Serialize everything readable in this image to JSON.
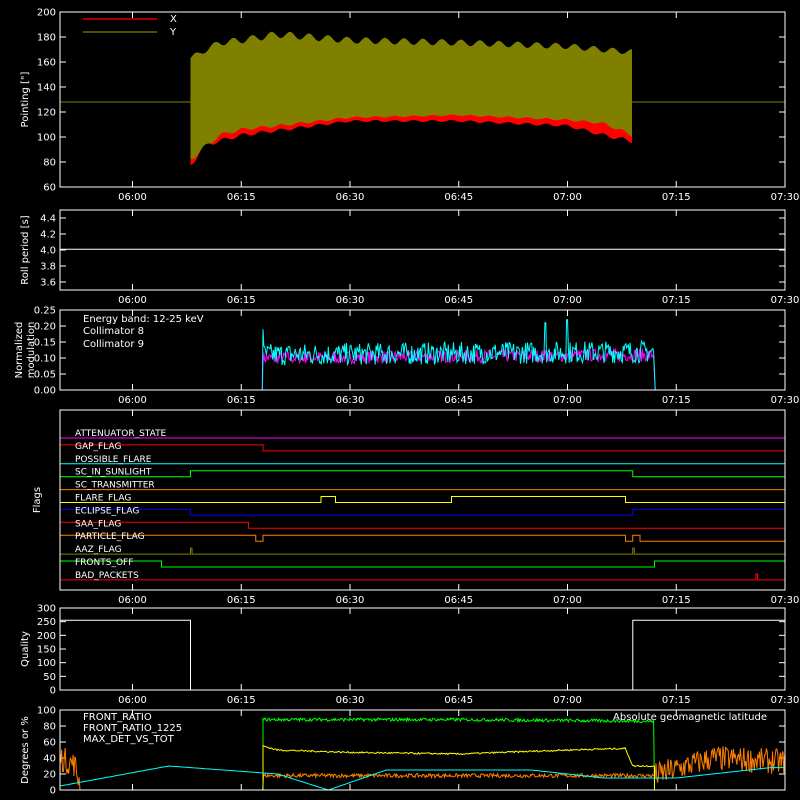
{
  "x_time_ticks": [
    "06:00",
    "06:15",
    "06:30",
    "06:45",
    "07:00",
    "07:15",
    "07:30"
  ],
  "chart_data": [
    {
      "type": "line",
      "panel": "pointing",
      "ylabel": "Pointing [\"]",
      "ylim": [
        60,
        200
      ],
      "yticks": [
        60,
        80,
        100,
        120,
        140,
        160,
        180,
        200
      ],
      "xlim": [
        "05:50",
        "07:30"
      ],
      "legend": [
        {
          "name": "X",
          "color": "#ff0000"
        },
        {
          "name": "Y",
          "color": "#808000"
        }
      ],
      "series": [
        {
          "name": "X",
          "color": "#ff0000",
          "baseline": 128,
          "envelope_upper": [
            [
              "06:08",
              165
            ],
            [
              "06:10",
              150
            ],
            [
              "06:15",
              152
            ],
            [
              "06:20",
              155
            ],
            [
              "06:30",
              158
            ],
            [
              "06:45",
              160
            ],
            [
              "07:00",
              162
            ],
            [
              "07:05",
              162
            ],
            [
              "07:09",
              165
            ]
          ],
          "envelope_lower": [
            [
              "06:08",
              75
            ],
            [
              "06:10",
              92
            ],
            [
              "06:15",
              100
            ],
            [
              "06:20",
              104
            ],
            [
              "06:30",
              112
            ],
            [
              "06:45",
              112
            ],
            [
              "07:00",
              108
            ],
            [
              "07:05",
              100
            ],
            [
              "07:09",
              95
            ]
          ]
        },
        {
          "name": "Y",
          "color": "#808000",
          "baseline": 128,
          "envelope_upper": [
            [
              "06:08",
              165
            ],
            [
              "06:12",
              178
            ],
            [
              "06:15",
              180
            ],
            [
              "06:20",
              185
            ],
            [
              "06:30",
              180
            ],
            [
              "06:45",
              178
            ],
            [
              "07:00",
              175
            ],
            [
              "07:05",
              172
            ],
            [
              "07:09",
              170
            ]
          ],
          "envelope_lower": [
            [
              "06:08",
              80
            ],
            [
              "06:12",
              100
            ],
            [
              "06:15",
              105
            ],
            [
              "06:20",
              108
            ],
            [
              "06:30",
              115
            ],
            [
              "06:45",
              117
            ],
            [
              "07:00",
              113
            ],
            [
              "07:05",
              110
            ],
            [
              "07:09",
              100
            ]
          ]
        }
      ]
    },
    {
      "type": "line",
      "panel": "roll_period",
      "ylabel": "Roll period [s]",
      "ylim": [
        3.5,
        4.5
      ],
      "yticks": [
        3.6,
        3.8,
        4.0,
        4.2,
        4.4
      ],
      "series": [
        {
          "name": "Roll period",
          "color": "#ffffff",
          "x": [
            "05:50",
            "07:30"
          ],
          "y": [
            4.01,
            4.01
          ]
        }
      ]
    },
    {
      "type": "line",
      "panel": "modulation",
      "ylabel": "Normalized modulation",
      "ylim": [
        0,
        0.25
      ],
      "yticks": [
        0.0,
        0.05,
        0.1,
        0.15,
        0.2,
        0.25
      ],
      "annotation": "Energy band: 12-25 keV",
      "legend": [
        {
          "name": "Collimator 8",
          "color": "#00ffff"
        },
        {
          "name": "Collimator 9",
          "color": "#ff00ff"
        }
      ],
      "series": [
        {
          "name": "Collimator 8",
          "color": "#00ffff",
          "active": [
            "06:18",
            "07:12"
          ],
          "level_start": 0.11,
          "level_end": 0.12,
          "spikes": [
            [
              "06:18",
              0.19
            ],
            [
              "06:57",
              0.21
            ],
            [
              "07:00",
              0.22
            ]
          ]
        },
        {
          "name": "Collimator 9",
          "color": "#ff00ff",
          "active": [
            "06:18",
            "07:12"
          ],
          "level_start": 0.1,
          "level_end": 0.11
        }
      ]
    },
    {
      "type": "line",
      "panel": "flags",
      "ylabel": "Flags",
      "flags": [
        {
          "name": "ATTENUATOR_STATE",
          "color": "#ff00ff",
          "level": 0,
          "highs": []
        },
        {
          "name": "GAP_FLAG",
          "color": "#ff0000",
          "level": 0,
          "highs": [
            [
              "05:50",
              "06:18"
            ]
          ]
        },
        {
          "name": "POSSIBLE_FLARE",
          "color": "#00ffff",
          "level": 0,
          "highs": []
        },
        {
          "name": "SC_IN_SUNLIGHT",
          "color": "#00ff00",
          "level": 0,
          "highs": [
            [
              "06:08",
              "07:09"
            ]
          ]
        },
        {
          "name": "SC_TRANSMITTER",
          "color": "#ff7f00",
          "level": 0,
          "highs": []
        },
        {
          "name": "FLARE_FLAG",
          "color": "#ffff00",
          "level": 0,
          "highs": [
            [
              "06:26",
              "06:28"
            ],
            [
              "06:44",
              "07:08"
            ]
          ]
        },
        {
          "name": "ECLIPSE_FLAG",
          "color": "#0000ff",
          "level": 0,
          "highs": [
            [
              "05:50",
              "06:08"
            ],
            [
              "07:09",
              "07:30"
            ]
          ]
        },
        {
          "name": "SAA_FLAG",
          "color": "#ff0000",
          "level": 0,
          "highs": [
            [
              "05:50",
              "06:16"
            ]
          ]
        },
        {
          "name": "PARTICLE_FLAG",
          "color": "#ff7f00",
          "level": 0,
          "highs": [
            [
              "05:50",
              "06:17"
            ],
            [
              "06:18",
              "07:08"
            ],
            [
              "07:09",
              "07:10"
            ]
          ]
        },
        {
          "name": "AAZ_FLAG",
          "color": "#808000",
          "level": 0,
          "highs": [
            [
              "06:08",
              "06:08"
            ],
            [
              "07:09",
              "07:09"
            ]
          ]
        },
        {
          "name": "FRONTS_OFF",
          "color": "#00ff00",
          "level": 0,
          "highs": [
            [
              "05:50",
              "06:04"
            ],
            [
              "07:12",
              "07:30"
            ]
          ]
        },
        {
          "name": "BAD_PACKETS",
          "color": "#ff0000",
          "level": 0,
          "highs": [
            [
              "07:26",
              "07:26"
            ]
          ]
        }
      ]
    },
    {
      "type": "line",
      "panel": "quality",
      "ylabel": "Quality",
      "ylim": [
        0,
        300
      ],
      "yticks": [
        0,
        50,
        100,
        150,
        200,
        250,
        300
      ],
      "series": [
        {
          "name": "Quality",
          "color": "#ffffff",
          "x": [
            "05:50",
            "06:08",
            "06:08",
            "07:09",
            "07:09",
            "07:30"
          ],
          "y": [
            255,
            255,
            0,
            0,
            255,
            255
          ]
        }
      ]
    },
    {
      "type": "line",
      "panel": "ratios",
      "ylabel": "Degrees or %",
      "ylim": [
        0,
        100
      ],
      "yticks": [
        0,
        20,
        40,
        60,
        80,
        100
      ],
      "legend": [
        {
          "name": "FRONT_RATIO",
          "color": "#ffff00"
        },
        {
          "name": "FRONT_RATIO_1225",
          "color": "#00ff00"
        },
        {
          "name": "MAX_DET_VS_TOT",
          "color": "#ff7f00"
        },
        {
          "name": "Absolute geomagnetic latitude",
          "color": "#00ffff"
        }
      ],
      "series": [
        {
          "name": "FRONT_RATIO",
          "color": "#ffff00",
          "x": [
            "06:18",
            "06:20",
            "06:30",
            "06:45",
            "07:00",
            "07:08",
            "07:09",
            "07:12"
          ],
          "y": [
            55,
            50,
            47,
            45,
            50,
            52,
            30,
            30
          ]
        },
        {
          "name": "FRONT_RATIO_1225",
          "color": "#00ff00",
          "x": [
            "06:18",
            "06:45",
            "07:12"
          ],
          "y": [
            88,
            88,
            86
          ]
        },
        {
          "name": "MAX_DET_VS_TOT",
          "color": "#ff7f00",
          "x": [
            "05:50",
            "05:52",
            "05:53",
            "06:18",
            "07:12",
            "07:20",
            "07:30"
          ],
          "y": [
            40,
            32,
            0,
            18,
            18,
            40,
            35
          ]
        },
        {
          "name": "Absolute geomagnetic latitude",
          "color": "#00ffff",
          "x": [
            "05:50",
            "06:05",
            "06:20",
            "06:27",
            "06:35",
            "06:55",
            "07:05",
            "07:15",
            "07:28"
          ],
          "y": [
            5,
            30,
            20,
            0,
            25,
            25,
            15,
            15,
            28
          ]
        }
      ]
    }
  ]
}
